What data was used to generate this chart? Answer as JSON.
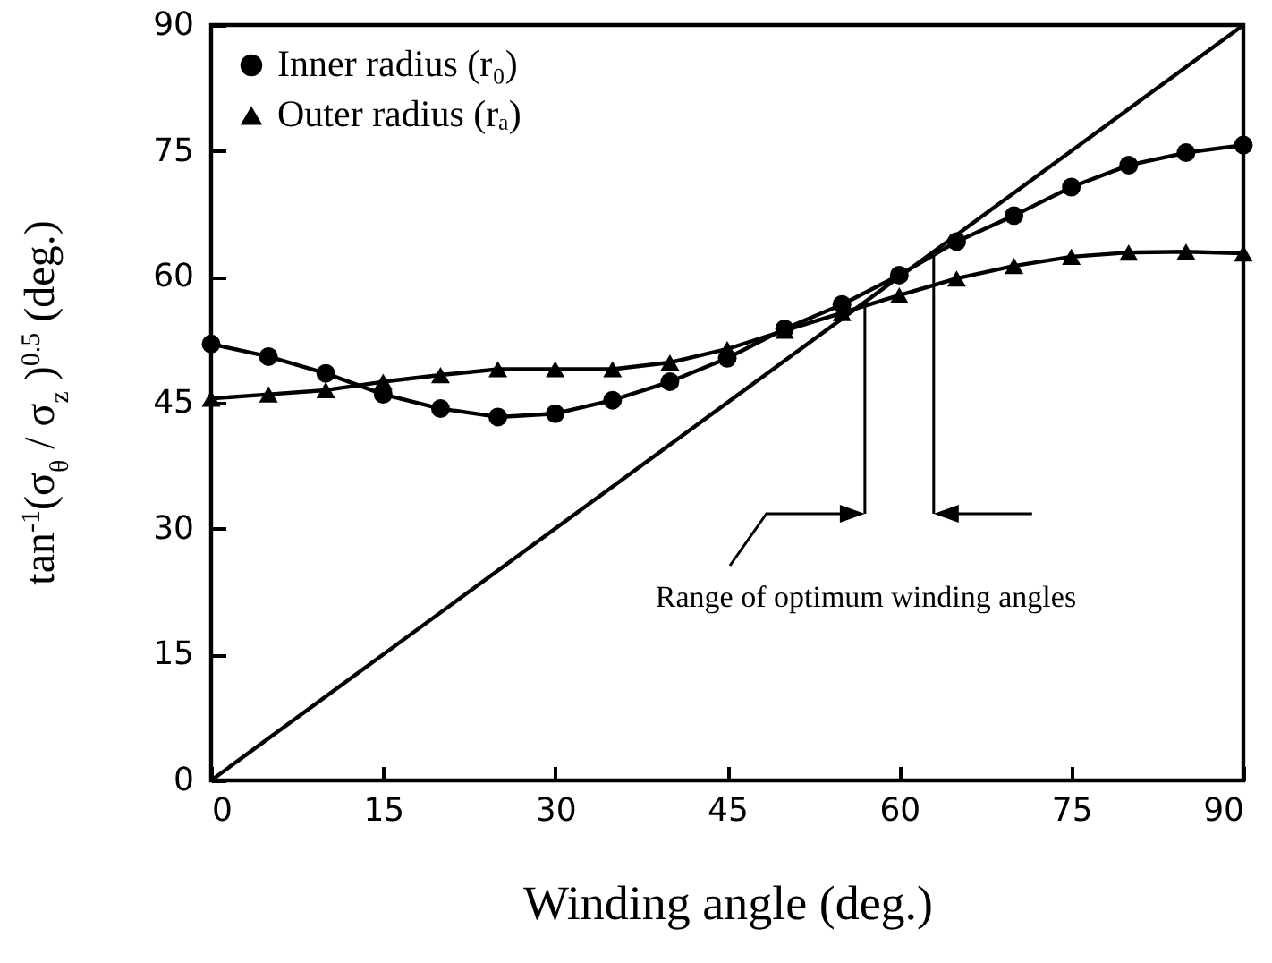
{
  "chart_data": {
    "type": "line",
    "xlabel": "Winding angle (deg.)",
    "ylabel": "tan$^{-1}$(σ$_{θ}$ / σ$_{z}$ )$^{0.5}$ (deg.)",
    "x": [
      0,
      5,
      10,
      15,
      20,
      25,
      30,
      35,
      40,
      45,
      50,
      55,
      60,
      65,
      70,
      75,
      80,
      85,
      90
    ],
    "series": [
      {
        "name": "Inner radius (r₀)",
        "color": "#000000",
        "marker": "circle",
        "values": [
          52,
          50.5,
          48.5,
          46,
          44.3,
          43.3,
          43.7,
          45.3,
          47.5,
          50.3,
          53.8,
          56.7,
          60.2,
          64.2,
          67.3,
          70.7,
          73.3,
          74.8,
          75.7
        ]
      },
      {
        "name": "Outer radius (rₐ)",
        "color": "#000000",
        "marker": "triangle",
        "values": [
          45.5,
          46,
          46.5,
          47.5,
          48.3,
          49,
          49,
          49,
          49.8,
          51.4,
          53.6,
          55.7,
          57.8,
          59.8,
          61.3,
          62.4,
          62.9,
          63,
          62.8
        ]
      },
      {
        "type": "line",
        "color": "#000000",
        "marker": "none",
        "x": [
          0,
          90
        ],
        "values": [
          0,
          90
        ]
      }
    ],
    "ref_lines": [
      {
        "axis": "x",
        "value": 57,
        "label": null
      },
      {
        "axis": "x",
        "value": 63,
        "label": null
      }
    ],
    "annotations": [
      "Range of optimum winding angles"
    ],
    "xlim": [
      0,
      90
    ],
    "xticks": [
      0,
      15,
      30,
      45,
      60,
      75,
      90
    ],
    "ylim": [
      0,
      90
    ],
    "yticks": [
      0,
      15,
      30,
      45,
      60,
      75,
      90
    ],
    "grid": false,
    "legend": "top left",
    "line_style": "solid"
  }
}
